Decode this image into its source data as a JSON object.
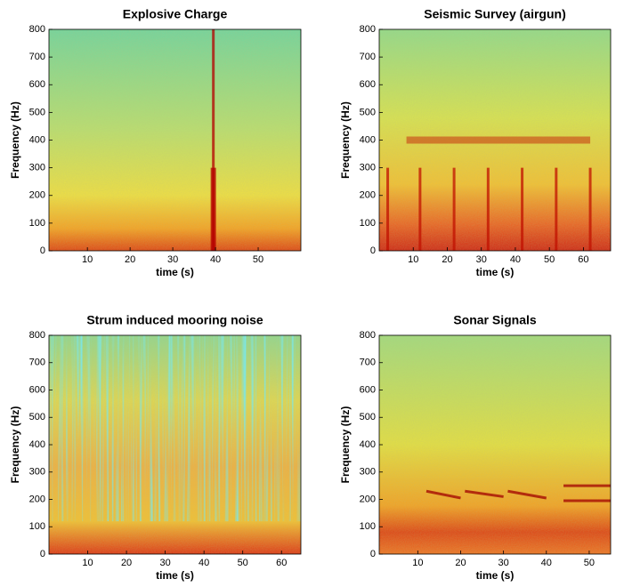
{
  "chart_data": [
    {
      "type": "spectrogram",
      "title": "Explosive Charge",
      "xlabel": "time (s)",
      "ylabel": "Frequency (Hz)",
      "xlim": [
        1,
        60
      ],
      "xticks": [
        10,
        20,
        30,
        40,
        50
      ],
      "ylim": [
        0,
        800
      ],
      "yticks": [
        0,
        100,
        200,
        300,
        400,
        500,
        600,
        700,
        800
      ],
      "color": "#b40000",
      "segments": [
        {
          "x": [
            39.5,
            39.5
          ],
          "y": [
            0,
            800
          ]
        },
        {
          "x": [
            39.5,
            39.5
          ],
          "y": [
            0,
            300
          ]
        }
      ]
    },
    {
      "type": "spectrogram",
      "title": "Seismic Survey (airgun)",
      "xlabel": "time (s)",
      "ylabel": "Frequency (Hz)",
      "xlim": [
        0,
        68
      ],
      "xticks": [
        10,
        20,
        30,
        40,
        50,
        60
      ],
      "ylim": [
        0,
        800
      ],
      "yticks": [
        0,
        100,
        200,
        300,
        400,
        500,
        600,
        700,
        800
      ],
      "color": "#c01000",
      "segments": [
        {
          "x": [
            2.5,
            2.5
          ],
          "y": [
            0,
            300
          ]
        },
        {
          "x": [
            12,
            12
          ],
          "y": [
            0,
            300
          ]
        },
        {
          "x": [
            22,
            22
          ],
          "y": [
            0,
            300
          ]
        },
        {
          "x": [
            32,
            32
          ],
          "y": [
            0,
            300
          ]
        },
        {
          "x": [
            42,
            42
          ],
          "y": [
            0,
            300
          ]
        },
        {
          "x": [
            52,
            52
          ],
          "y": [
            0,
            300
          ]
        },
        {
          "x": [
            62,
            62
          ],
          "y": [
            0,
            300
          ]
        },
        {
          "x": [
            8,
            62
          ],
          "y": [
            400,
            400
          ]
        }
      ]
    },
    {
      "type": "spectrogram",
      "title": "Strum induced mooring noise",
      "xlabel": "time (s)",
      "ylabel": "Frequency (Hz)",
      "xlim": [
        0,
        65
      ],
      "xticks": [
        10,
        20,
        30,
        40,
        50,
        60
      ],
      "ylim": [
        0,
        800
      ],
      "yticks": [
        0,
        100,
        200,
        300,
        400,
        500,
        600,
        700,
        800
      ],
      "color": "#c02000",
      "segments": []
    },
    {
      "type": "spectrogram",
      "title": "Sonar Signals",
      "xlabel": "time (s)",
      "ylabel": "Frequency (Hz)",
      "xlim": [
        1,
        55
      ],
      "xticks": [
        10,
        20,
        30,
        40,
        50
      ],
      "ylim": [
        0,
        800
      ],
      "yticks": [
        0,
        100,
        200,
        300,
        400,
        500,
        600,
        700,
        800
      ],
      "color": "#a00000",
      "segments": [
        {
          "x": [
            12,
            20
          ],
          "y": [
            230,
            205
          ]
        },
        {
          "x": [
            21,
            30
          ],
          "y": [
            230,
            210
          ]
        },
        {
          "x": [
            31,
            40
          ],
          "y": [
            230,
            205
          ]
        },
        {
          "x": [
            44,
            55
          ],
          "y": [
            250,
            250
          ]
        },
        {
          "x": [
            44,
            55
          ],
          "y": [
            195,
            195
          ]
        }
      ]
    }
  ]
}
